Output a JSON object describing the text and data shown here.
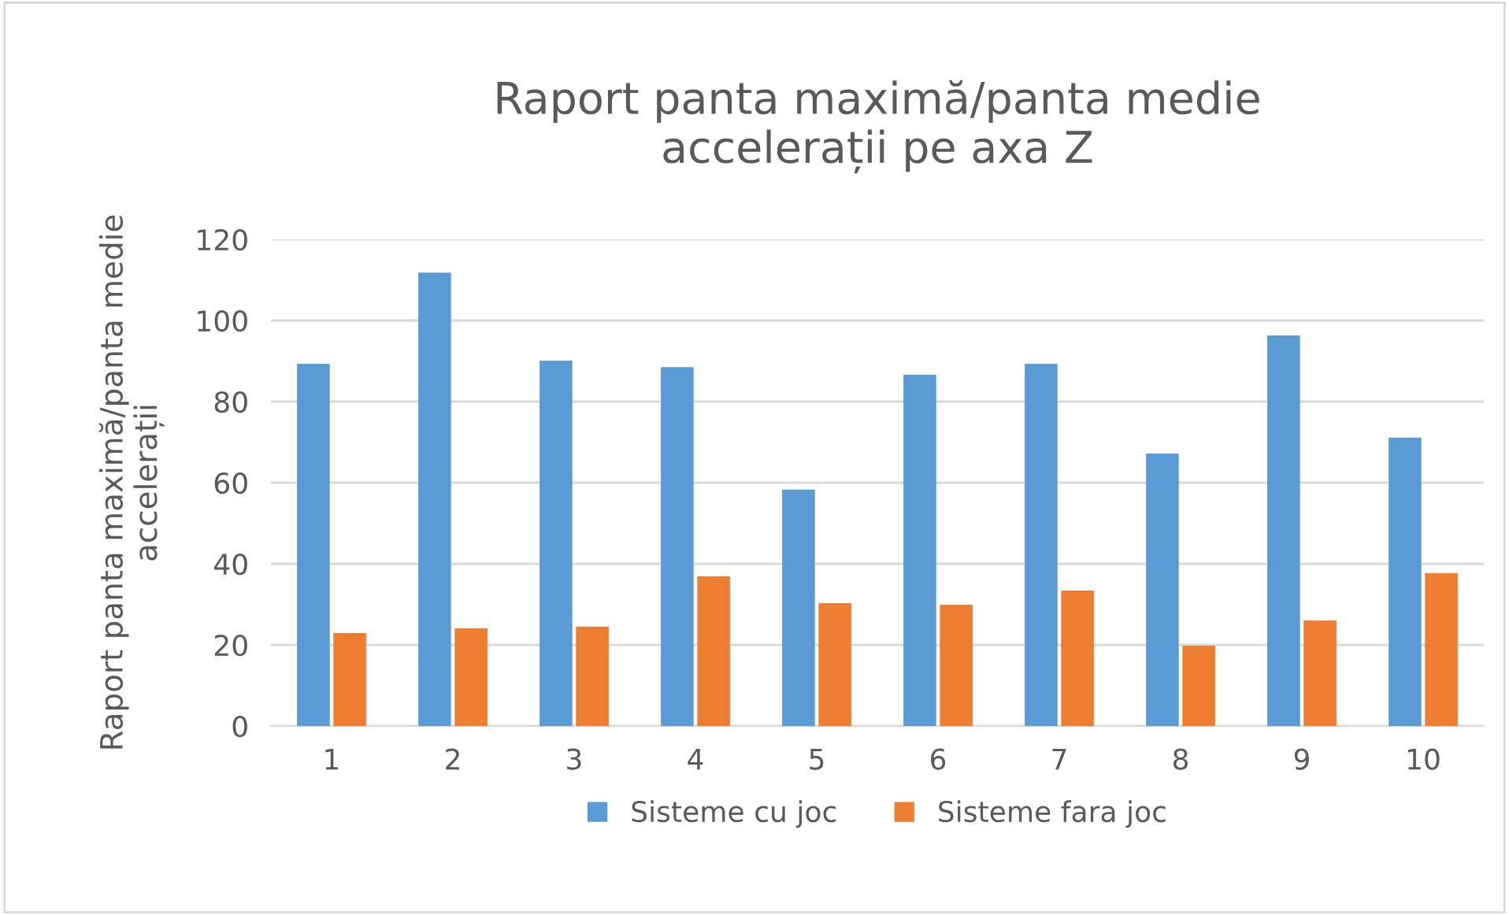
{
  "chart_data": {
    "type": "bar",
    "title": "Raport panta maximă/panta medie\naccelerații pe axa Z",
    "ylabel": "Raport panta maximă/panta medie\naccelerații",
    "categories": [
      "1",
      "2",
      "3",
      "4",
      "5",
      "6",
      "7",
      "8",
      "9",
      "10"
    ],
    "series": [
      {
        "name": "Sisteme cu joc",
        "color": "#5b9bd5",
        "values": [
          89.3,
          111.8,
          90.1,
          88.5,
          58.3,
          86.6,
          89.3,
          67.2,
          96.3,
          71.1
        ]
      },
      {
        "name": "Sisteme fara joc",
        "color": "#ed7d31",
        "values": [
          22.9,
          24.1,
          24.5,
          36.9,
          30.3,
          29.9,
          33.4,
          19.8,
          26.0,
          37.7
        ]
      }
    ],
    "ylim": [
      0,
      120
    ],
    "yticks": [
      0,
      20,
      40,
      60,
      80,
      100,
      120
    ],
    "grid": "y",
    "legend": "bottom"
  }
}
